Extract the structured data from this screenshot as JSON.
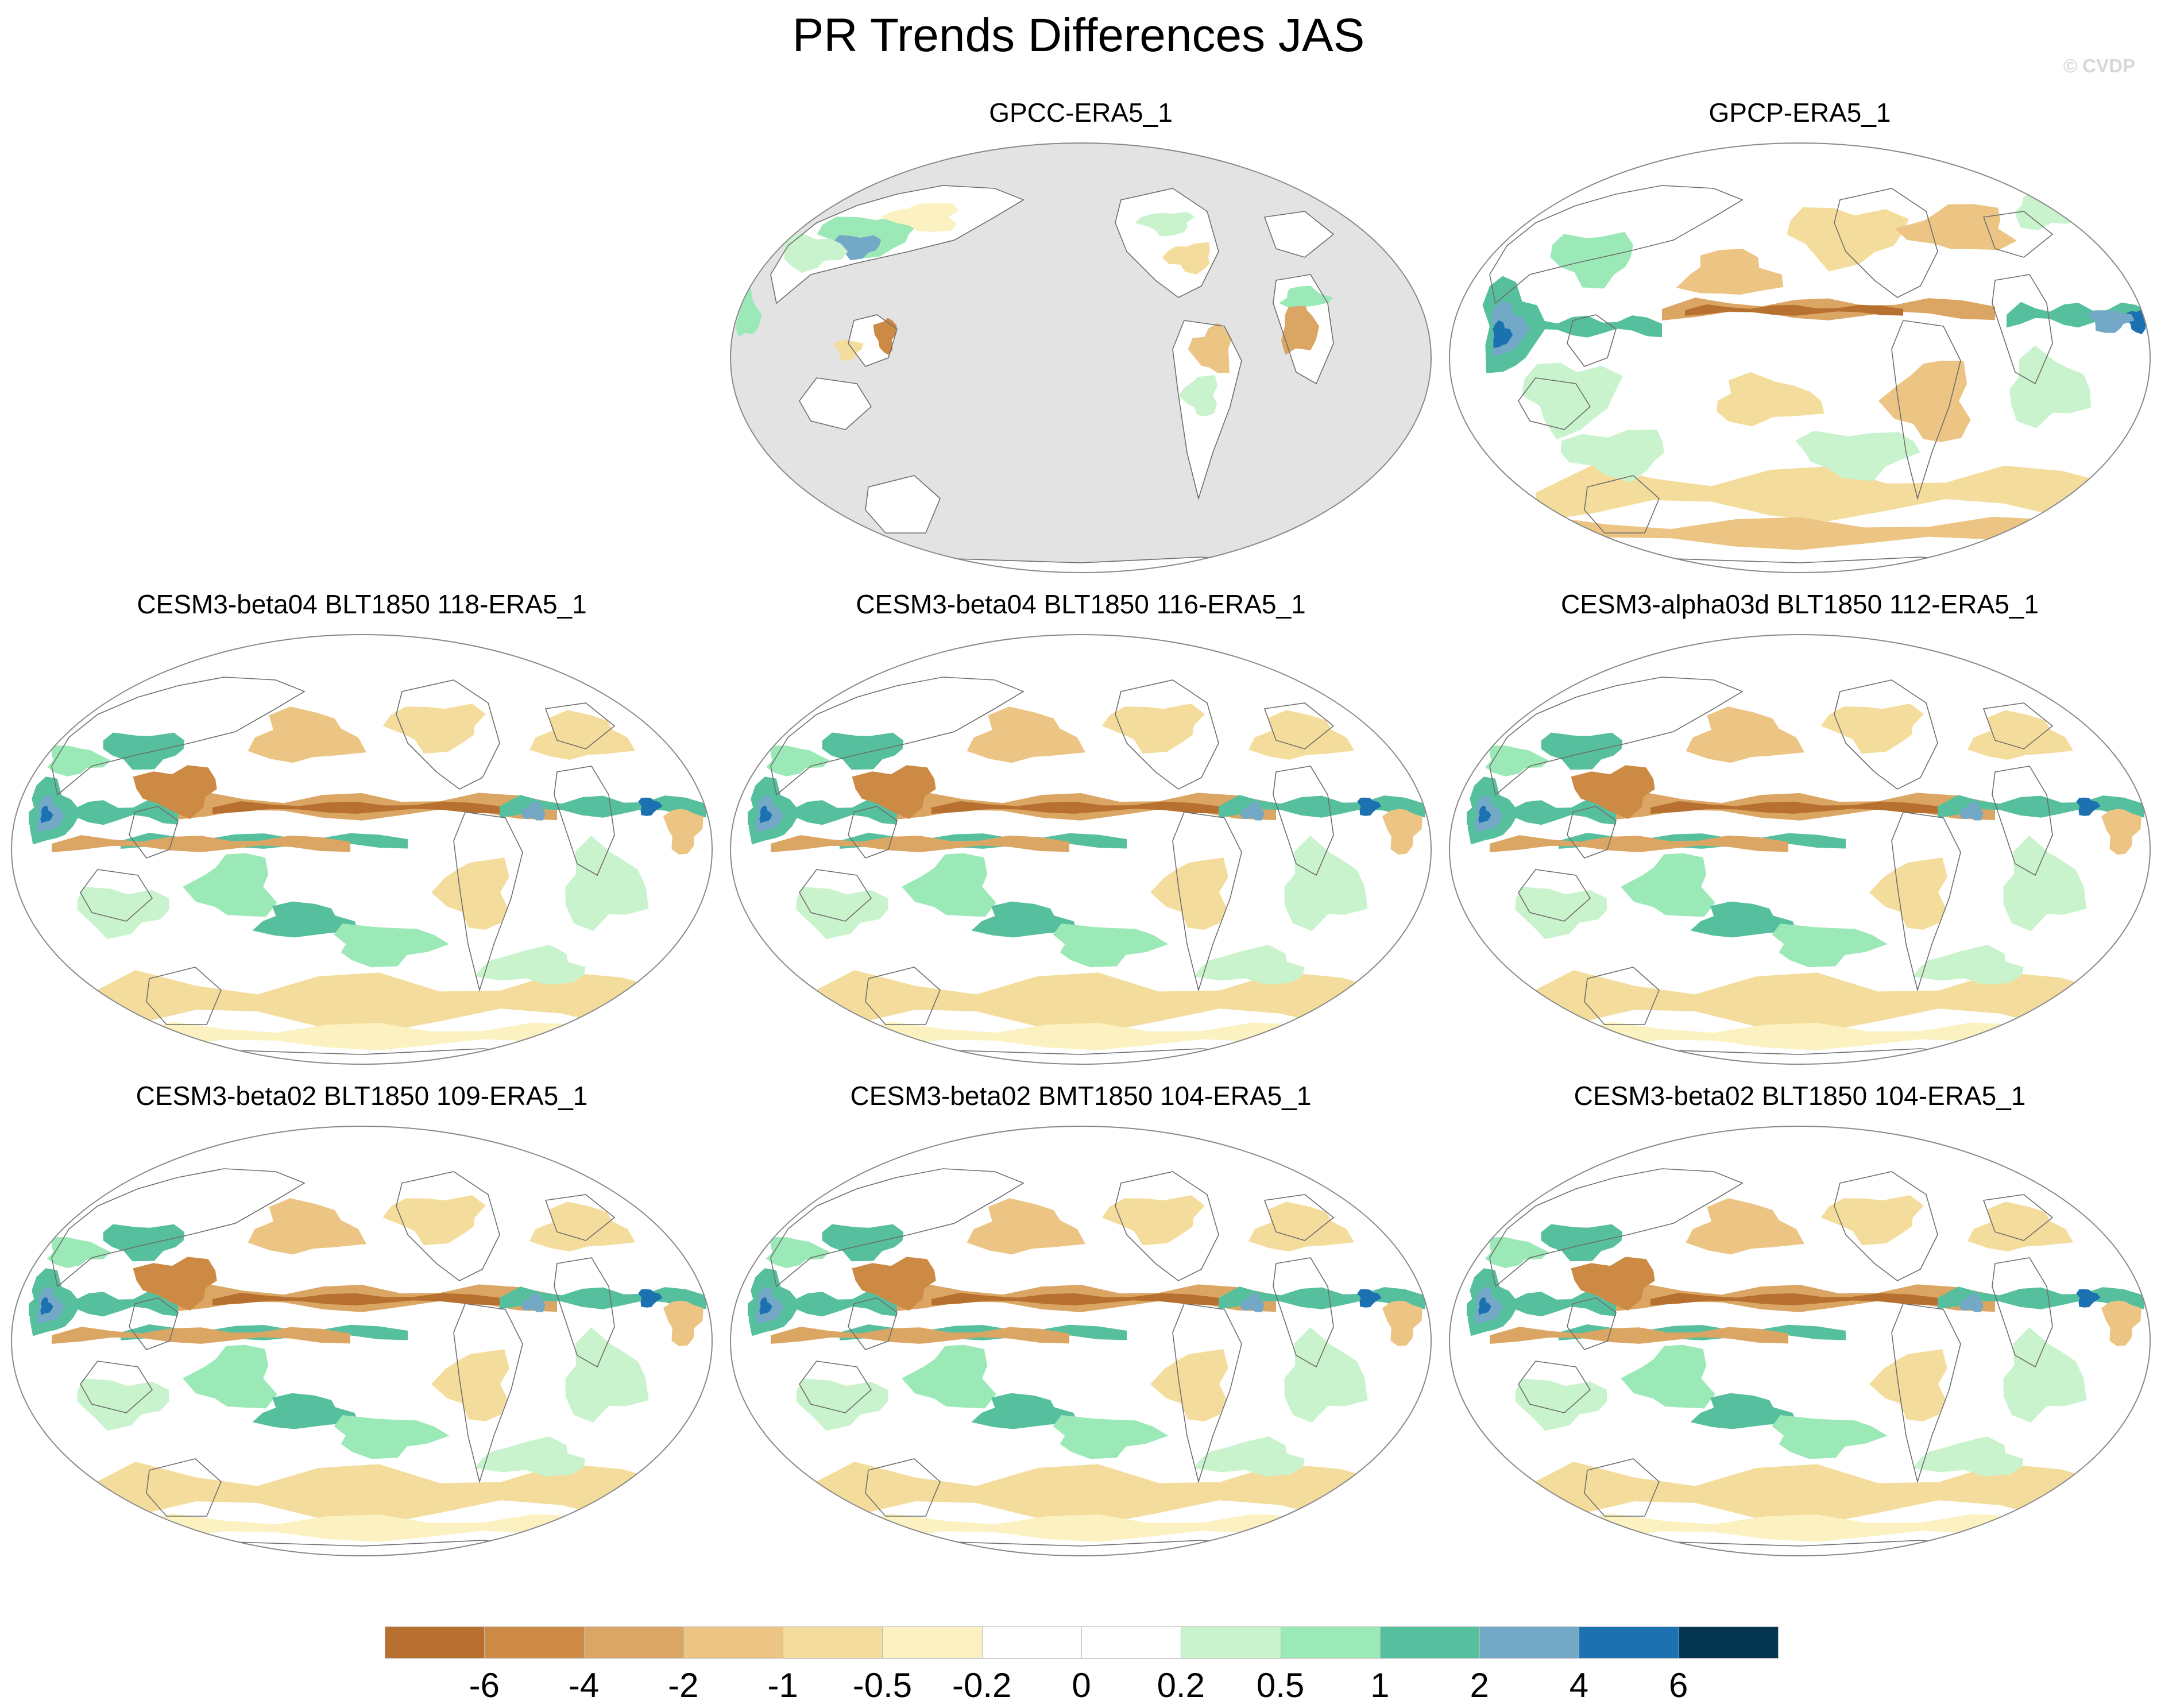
{
  "title": "PR Trends Differences JAS",
  "watermark": "© CVDP",
  "panels": [
    {
      "title": "GPCC-ERA5_1",
      "variant": "land"
    },
    {
      "title": "GPCP-ERA5_1",
      "variant": "gpcp"
    },
    {
      "title": "CESM3-beta04 BLT1850 118-ERA5_1",
      "variant": "model"
    },
    {
      "title": "CESM3-beta04 BLT1850 116-ERA5_1",
      "variant": "model"
    },
    {
      "title": "CESM3-alpha03d BLT1850 112-ERA5_1",
      "variant": "model"
    },
    {
      "title": "CESM3-beta02 BLT1850 109-ERA5_1",
      "variant": "model"
    },
    {
      "title": "CESM3-beta02 BMT1850 104-ERA5_1",
      "variant": "model"
    },
    {
      "title": "CESM3-beta02 BLT1850 104-ERA5_1",
      "variant": "model"
    }
  ],
  "colorbar": {
    "colors": [
      "#b7702f",
      "#cd8a45",
      "#dba664",
      "#ecc483",
      "#f4dd9c",
      "#fbf1c1",
      "#ffffff",
      "#ffffff",
      "#c9f3cc",
      "#9be9b7",
      "#56bf9d",
      "#74a8c7",
      "#1c72b1",
      "#053651"
    ],
    "labels": [
      "-6",
      "-4",
      "-2",
      "-1",
      "-0.5",
      "-0.2",
      "0",
      "0.2",
      "0.5",
      "1",
      "2",
      "4",
      "6"
    ]
  },
  "missing_color": "#e3e3e3"
}
